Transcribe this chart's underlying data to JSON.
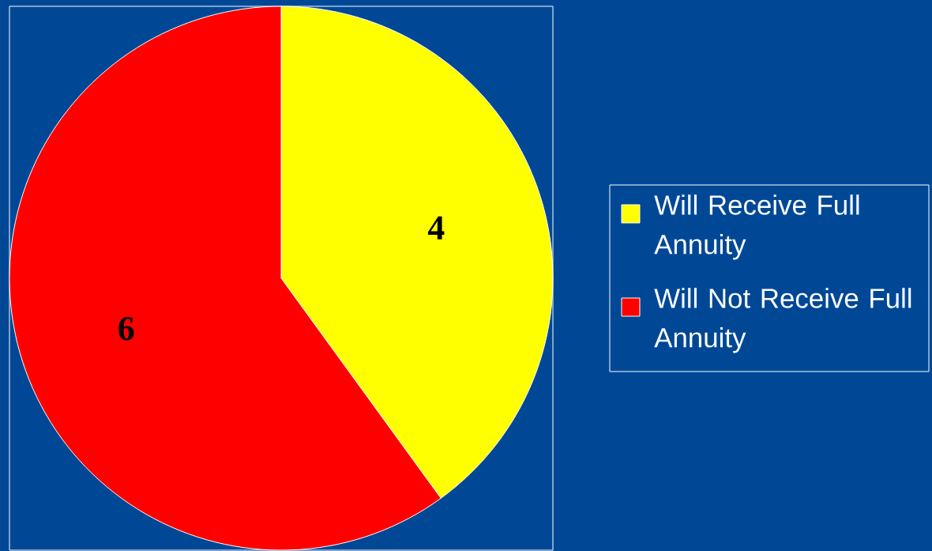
{
  "chart_data": {
    "type": "pie",
    "categories": [
      "Will Receive Full Annuity",
      "Will Not Receive Full Annuity"
    ],
    "values": [
      4,
      6
    ],
    "colors": [
      "#ffff00",
      "#ff0000"
    ],
    "data_labels": true,
    "legend": "right"
  }
}
